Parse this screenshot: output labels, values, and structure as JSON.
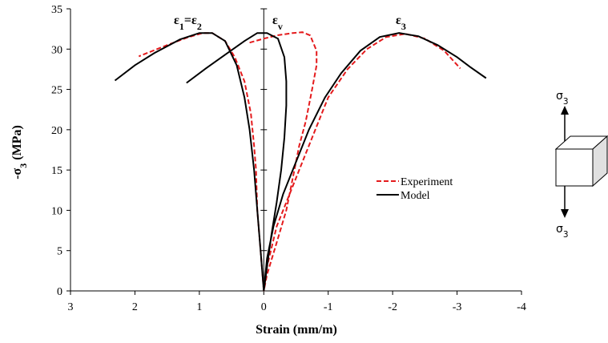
{
  "chart_data": {
    "type": "line",
    "xlabel": "Strain (mm/m)",
    "ylabel_parts": [
      {
        "text": "-σ"
      },
      {
        "text": "3",
        "sub": true
      },
      {
        "text": " (MPa)"
      }
    ],
    "xlim": [
      3,
      -4
    ],
    "ylim": [
      0,
      35
    ],
    "xticks": [
      3,
      2,
      1,
      0,
      -1,
      -2,
      -3,
      -4
    ],
    "yticks": [
      0,
      5,
      10,
      15,
      20,
      25,
      30,
      35
    ],
    "grid": false,
    "legend": "center-right",
    "annotations": [
      {
        "parts": [
          {
            "text": "ε"
          },
          {
            "text": "1",
            "sub": true
          },
          {
            "text": "="
          },
          {
            "text": "ε"
          },
          {
            "text": "2",
            "sub": true
          }
        ]
      },
      {
        "parts": [
          {
            "text": "ε"
          },
          {
            "text": "v",
            "sub": true
          }
        ]
      },
      {
        "parts": [
          {
            "text": "ε"
          },
          {
            "text": "3",
            "sub": true
          }
        ]
      }
    ],
    "series": [
      {
        "name": "Experiment",
        "color": "#e41a1c",
        "dashed": true,
        "x": [
          0,
          0.05,
          0.1,
          0.12,
          0.15,
          0.2,
          0.3,
          0.45,
          0.6,
          0.8,
          0.95,
          1.2,
          1.5,
          1.94,
          null,
          0.22,
          0,
          -0.2,
          -0.45,
          -0.6,
          -0.72,
          -0.82,
          -0.82,
          -0.75,
          -0.65,
          -0.55,
          -0.45,
          -0.35,
          -0.2,
          -0.05,
          0,
          null,
          0,
          -0.05,
          -0.2,
          -0.4,
          -0.6,
          -0.8,
          -1.0,
          -1.3,
          -1.6,
          -1.9,
          -2.2,
          -2.5,
          -2.8,
          -3.05
        ],
        "values": [
          0,
          5,
          10,
          15,
          18,
          22,
          26,
          29,
          31,
          32,
          32,
          31.4,
          30.5,
          29.1,
          null,
          30.8,
          31.3,
          31.7,
          32,
          32.1,
          31.7,
          29.8,
          28,
          25,
          21,
          18,
          14,
          10,
          6,
          2,
          0,
          null,
          0,
          3,
          8,
          12,
          16,
          20,
          24,
          27.5,
          30,
          31.5,
          31.9,
          31.3,
          29.8,
          27.6
        ]
      },
      {
        "name": "Model",
        "color": "#000000",
        "dashed": false,
        "x": [
          0,
          0.05,
          0.1,
          0.15,
          0.22,
          0.3,
          0.42,
          0.6,
          0.8,
          1.0,
          1.3,
          1.7,
          2.0,
          2.31,
          null,
          0,
          -0.05,
          -0.12,
          -0.2,
          -0.27,
          -0.32,
          -0.35,
          -0.35,
          -0.32,
          -0.22,
          -0.05,
          0.1,
          0.3,
          0.6,
          0.9,
          1.2,
          null,
          0,
          -0.05,
          -0.15,
          -0.3,
          -0.5,
          -0.7,
          -0.95,
          -1.2,
          -1.5,
          -1.8,
          -2.1,
          -2.4,
          -2.7,
          -3.0,
          -3.2,
          -3.45
        ],
        "values": [
          0,
          5,
          10,
          15,
          20,
          24,
          28,
          31,
          32,
          32,
          31.2,
          29.5,
          28,
          26.1,
          null,
          0,
          3,
          7,
          11,
          15,
          19,
          23,
          26,
          29,
          31.3,
          32,
          32,
          31,
          29.3,
          27.6,
          25.8,
          null,
          0,
          4,
          8,
          12,
          16,
          20,
          24,
          27,
          29.8,
          31.5,
          32,
          31.6,
          30.5,
          29,
          27.8,
          26.4
        ]
      }
    ]
  },
  "diagram": {
    "top_label": [
      {
        "text": "σ"
      },
      {
        "text": "3",
        "sub": true
      }
    ],
    "bottom_label": [
      {
        "text": "σ"
      },
      {
        "text": "3",
        "sub": true
      }
    ]
  }
}
